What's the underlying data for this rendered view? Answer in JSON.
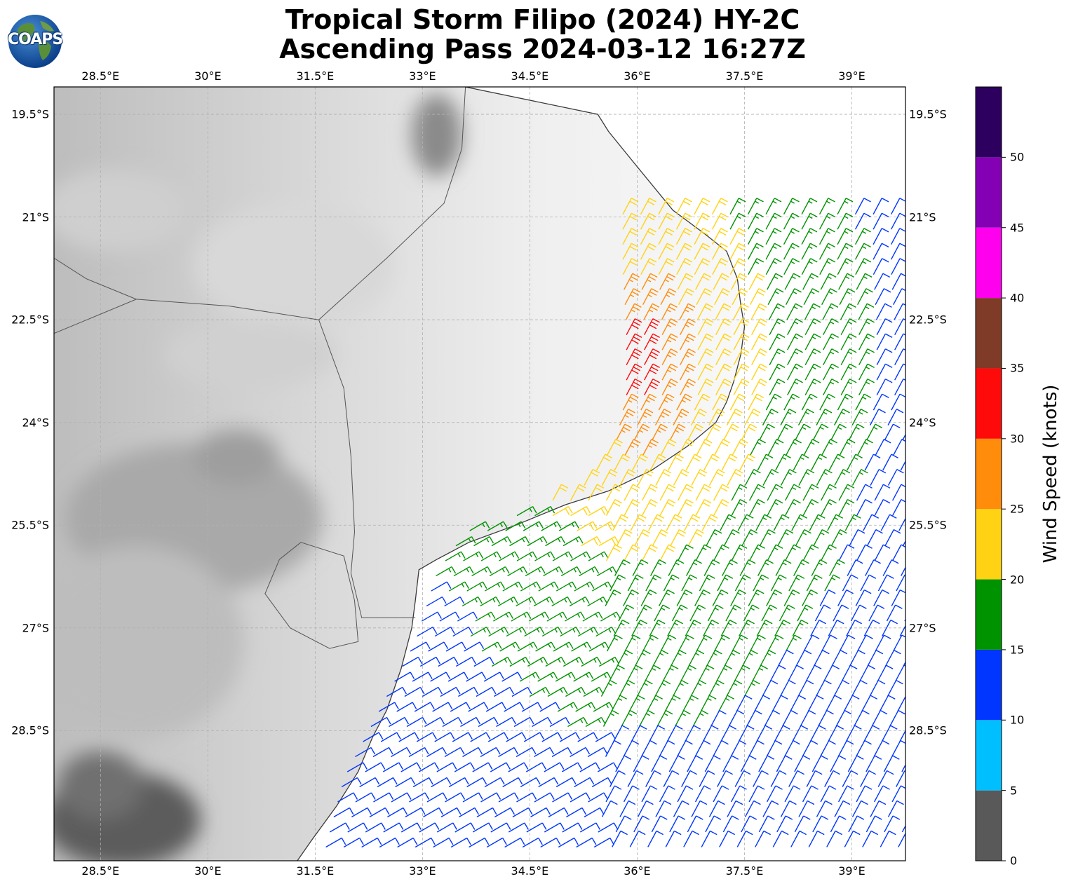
{
  "title": {
    "line1": "Tropical Storm Filipo (2024) HY-2C",
    "line2": "Ascending Pass 2024-03-12 16:27Z"
  },
  "logo": {
    "text": "COAPS",
    "icon": "globe-icon"
  },
  "map": {
    "lon_range": [
      27.85,
      39.75
    ],
    "lat_range": [
      -30.4,
      -19.1
    ],
    "lon_ticks": [
      {
        "value": 28.5,
        "label": "28.5°E"
      },
      {
        "value": 30,
        "label": "30°E"
      },
      {
        "value": 31.5,
        "label": "31.5°E"
      },
      {
        "value": 33,
        "label": "33°E"
      },
      {
        "value": 34.5,
        "label": "34.5°E"
      },
      {
        "value": 36,
        "label": "36°E"
      },
      {
        "value": 37.5,
        "label": "37.5°E"
      },
      {
        "value": 39,
        "label": "39°E"
      }
    ],
    "lat_ticks": [
      {
        "value": -19.5,
        "label": "19.5°S"
      },
      {
        "value": -21,
        "label": "21°S"
      },
      {
        "value": -22.5,
        "label": "22.5°S"
      },
      {
        "value": -24,
        "label": "24°S"
      },
      {
        "value": -25.5,
        "label": "25.5°S"
      },
      {
        "value": -27,
        "label": "27°S"
      },
      {
        "value": -28.5,
        "label": "28.5°S"
      }
    ],
    "coastline": [
      [
        33.6,
        -19.1
      ],
      [
        35.45,
        -19.5
      ],
      [
        35.6,
        -19.75
      ],
      [
        35.95,
        -20.2
      ],
      [
        36.5,
        -20.9
      ],
      [
        36.95,
        -21.25
      ],
      [
        37.25,
        -21.5
      ],
      [
        37.4,
        -21.9
      ],
      [
        37.45,
        -22.3
      ],
      [
        37.5,
        -22.6
      ],
      [
        37.45,
        -23.0
      ],
      [
        37.35,
        -23.4
      ],
      [
        37.25,
        -23.7
      ],
      [
        37.1,
        -24.0
      ],
      [
        36.7,
        -24.35
      ],
      [
        36.2,
        -24.7
      ],
      [
        35.6,
        -25.0
      ],
      [
        35.0,
        -25.2
      ],
      [
        34.3,
        -25.5
      ],
      [
        33.65,
        -25.75
      ],
      [
        33.2,
        -26.0
      ],
      [
        32.95,
        -26.15
      ],
      [
        32.9,
        -26.6
      ],
      [
        32.85,
        -27.0
      ],
      [
        32.7,
        -27.6
      ],
      [
        32.5,
        -28.2
      ],
      [
        32.3,
        -28.6
      ],
      [
        32.1,
        -29.1
      ],
      [
        31.8,
        -29.6
      ],
      [
        31.45,
        -30.1
      ],
      [
        31.25,
        -30.4
      ]
    ],
    "borders": [
      [
        [
          31.55,
          -22.5
        ],
        [
          32.5,
          -21.6
        ],
        [
          33.3,
          -20.8
        ],
        [
          33.55,
          -20.0
        ],
        [
          33.6,
          -19.1
        ]
      ],
      [
        [
          31.55,
          -22.5
        ],
        [
          31.9,
          -23.5
        ],
        [
          32.0,
          -24.5
        ],
        [
          32.05,
          -25.6
        ],
        [
          32.0,
          -26.2
        ],
        [
          32.15,
          -26.85
        ],
        [
          32.9,
          -26.85
        ]
      ],
      [
        [
          27.85,
          -22.7
        ],
        [
          29.0,
          -22.2
        ],
        [
          30.3,
          -22.3
        ],
        [
          31.55,
          -22.5
        ]
      ],
      [
        [
          27.85,
          -21.6
        ],
        [
          28.3,
          -21.9
        ],
        [
          29.0,
          -22.2
        ]
      ],
      [
        [
          31.3,
          -25.75
        ],
        [
          31.9,
          -25.95
        ],
        [
          32.05,
          -26.6
        ],
        [
          32.1,
          -27.2
        ],
        [
          31.7,
          -27.3
        ],
        [
          31.15,
          -27.0
        ],
        [
          30.8,
          -26.5
        ],
        [
          31.0,
          -26.0
        ],
        [
          31.3,
          -25.75
        ]
      ]
    ],
    "elevation_patches": [
      {
        "lon": 28.7,
        "lat": -20.9,
        "rx": 1.0,
        "ry": 0.6,
        "shade": "#cfcfcf"
      },
      {
        "lon": 31.2,
        "lat": -21.7,
        "rx": 1.4,
        "ry": 0.9,
        "shade": "#d8d8d8"
      },
      {
        "lon": 33.2,
        "lat": -19.8,
        "rx": 0.35,
        "ry": 0.6,
        "shade": "#8a8a8a"
      },
      {
        "lon": 30.6,
        "lat": -23.0,
        "rx": 1.2,
        "ry": 0.5,
        "shade": "#d0d0d0"
      },
      {
        "lon": 29.8,
        "lat": -25.4,
        "rx": 1.8,
        "ry": 1.1,
        "shade": "#a9a9a9"
      },
      {
        "lon": 30.4,
        "lat": -24.5,
        "rx": 0.6,
        "ry": 0.4,
        "shade": "#9e9e9e"
      },
      {
        "lon": 29.0,
        "lat": -27.2,
        "rx": 1.5,
        "ry": 1.4,
        "shade": "#bdbdbd"
      },
      {
        "lon": 28.8,
        "lat": -29.8,
        "rx": 1.1,
        "ry": 0.7,
        "shade": "#5c5c5c"
      },
      {
        "lon": 28.5,
        "lat": -29.3,
        "rx": 0.6,
        "ry": 0.5,
        "shade": "#707070"
      }
    ]
  },
  "colorbar": {
    "label": "Wind Speed (knots)",
    "bins": [
      {
        "min": 0,
        "max": 5,
        "color": "#595959"
      },
      {
        "min": 5,
        "max": 10,
        "color": "#00bfff"
      },
      {
        "min": 10,
        "max": 15,
        "color": "#0036ff"
      },
      {
        "min": 15,
        "max": 20,
        "color": "#009300"
      },
      {
        "min": 20,
        "max": 25,
        "color": "#ffd313"
      },
      {
        "min": 25,
        "max": 30,
        "color": "#ff8c0a"
      },
      {
        "min": 30,
        "max": 35,
        "color": "#ff0a0a"
      },
      {
        "min": 35,
        "max": 40,
        "color": "#7f3b28"
      },
      {
        "min": 40,
        "max": 45,
        "color": "#ff00ee"
      },
      {
        "min": 45,
        "max": 50,
        "color": "#8400b4"
      },
      {
        "min": 50,
        "max": 55,
        "color": "#2d0060"
      }
    ],
    "ticks": [
      "0",
      "5",
      "10",
      "15",
      "20",
      "25",
      "30",
      "35",
      "40",
      "45",
      "50"
    ]
  },
  "wind_field": {
    "swath_west_edge": [
      [
        35.8,
        -20.8
      ],
      [
        35.8,
        -21.8
      ],
      [
        35.85,
        -22.6
      ],
      [
        35.85,
        -23.6
      ],
      [
        35.7,
        -24.3
      ],
      [
        35.3,
        -24.9
      ],
      [
        34.5,
        -25.3
      ],
      [
        33.6,
        -25.6
      ],
      [
        33.2,
        -26.2
      ],
      [
        32.9,
        -27.2
      ],
      [
        32.6,
        -27.8
      ],
      [
        32.3,
        -28.4
      ],
      [
        31.9,
        -29.2
      ],
      [
        31.6,
        -30.4
      ]
    ],
    "swath_east_edge": 39.75,
    "storm_center": {
      "lon": 35.95,
      "lat": -23.2
    },
    "speed_zones_kt": [
      {
        "name": "core",
        "max_dist_deg": 0.35,
        "speed": 33
      },
      {
        "name": "inner",
        "max_dist_deg": 0.75,
        "speed": 27
      },
      {
        "name": "band",
        "max_dist_deg": 1.6,
        "speed": 22
      },
      {
        "name": "outer",
        "max_dist_deg": 3.0,
        "speed": 17
      },
      {
        "name": "far",
        "max_dist_deg": 99,
        "speed": 13
      }
    ]
  }
}
